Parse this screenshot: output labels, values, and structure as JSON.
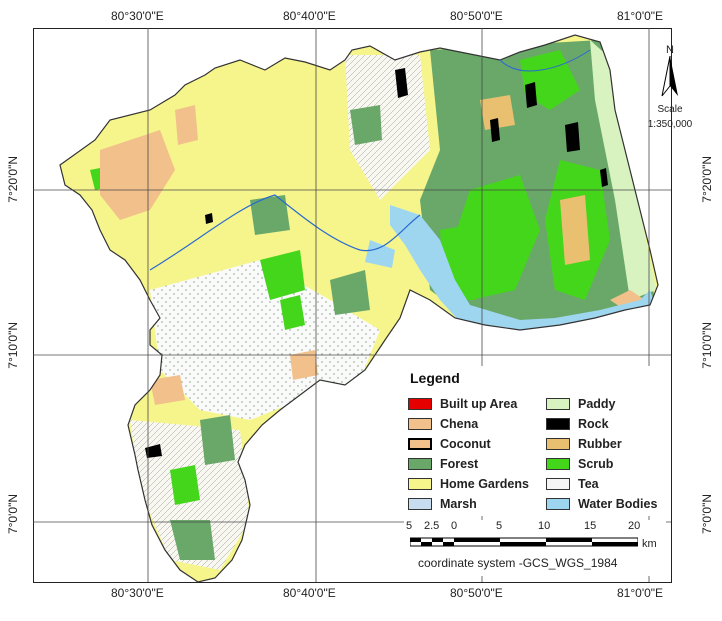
{
  "map": {
    "lon_ticks": [
      "80°30'0\"E",
      "80°40'0\"E",
      "80°50'0\"E",
      "81°0'0\"E"
    ],
    "lat_ticks": [
      "7°20'0\"N",
      "7°10'0\"N",
      "7°0'0\"N"
    ],
    "colors": {
      "home_gardens": "#f6f58c",
      "forest": "#6aa86a",
      "scrub": "#44d61a",
      "paddy": "#d8f2c0",
      "chena": "#f2c08a",
      "rubber": "#e9c070",
      "rock": "#000000",
      "water_bodies": "#9fd6ef",
      "built_up": "#e60000",
      "marsh": "#c8dcf0",
      "tea": "#f4f4f4",
      "coconut": "#f2c08a",
      "outline": "#333333"
    }
  },
  "legend": {
    "title": "Legend",
    "items": [
      {
        "label": "Built up Area",
        "color": "#e60000"
      },
      {
        "label": "Chena",
        "color": "#f2c08a"
      },
      {
        "label": "Coconut",
        "color": "#f2c08a"
      },
      {
        "label": "Forest",
        "color": "#6aa86a"
      },
      {
        "label": "Home Gardens",
        "color": "#f6f58c"
      },
      {
        "label": "Marsh",
        "color": "#c8dcf0"
      },
      {
        "label": "Paddy",
        "color": "#d8f2c0"
      },
      {
        "label": "Rock",
        "color": "#000000"
      },
      {
        "label": "Rubber",
        "color": "#e9c070"
      },
      {
        "label": "Scrub",
        "color": "#44d61a"
      },
      {
        "label": "Tea",
        "color": "#f4f4f4"
      },
      {
        "label": "Water Bodies",
        "color": "#9fd6ef"
      }
    ]
  },
  "scale_bar": {
    "ticks": [
      "5",
      "2.5",
      "0",
      "5",
      "10",
      "15",
      "20"
    ],
    "unit": "km",
    "coordinate_system": "coordinate system -GCS_WGS_1984"
  },
  "north_arrow": {
    "letter": "N",
    "scale_label": "Scale",
    "scale_value": "1:350,000"
  }
}
